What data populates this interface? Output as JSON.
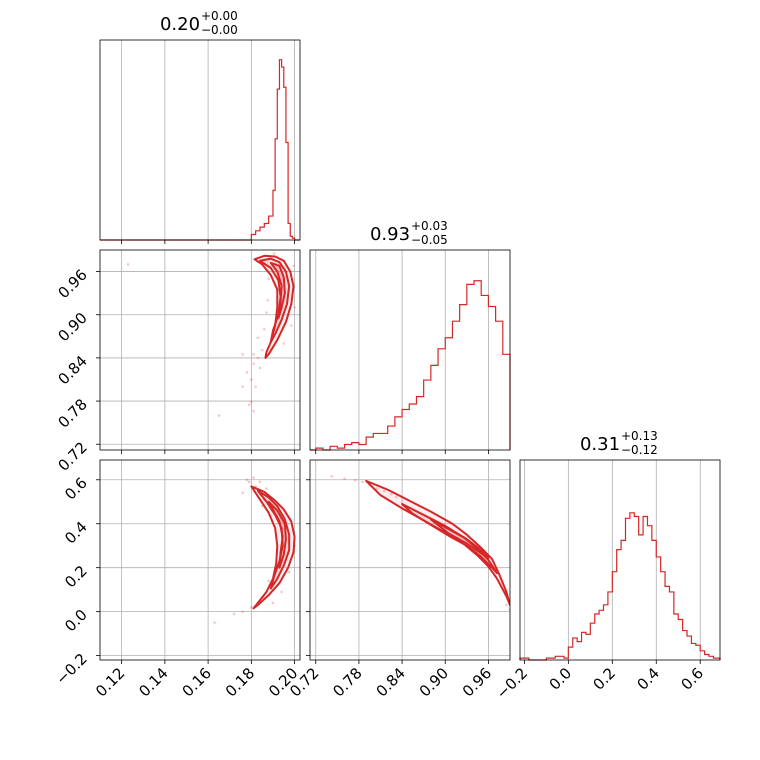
{
  "colors": {
    "line": "#d62728",
    "grid": "#b0b0b0",
    "frame": "#000000"
  },
  "chart_data": {
    "type": "corner",
    "parameters": [
      {
        "title": {
          "value": "0.20",
          "plus": "+0.00",
          "minus": "−0.00"
        },
        "range": [
          0.11,
          0.2025
        ],
        "ticks": [
          0.12,
          0.14,
          0.16,
          0.18,
          0.2
        ],
        "tick_labels": [
          "0.12",
          "0.14",
          "0.16",
          "0.18",
          "0.20"
        ],
        "histogram": {
          "edges": [
            0.11,
            0.18,
            0.182,
            0.184,
            0.186,
            0.188,
            0.19,
            0.191,
            0.192,
            0.193,
            0.194,
            0.195,
            0.196,
            0.197,
            0.198,
            0.199,
            0.2,
            0.2025
          ],
          "counts": [
            0.0,
            0.03,
            0.05,
            0.07,
            0.09,
            0.13,
            0.27,
            0.55,
            0.82,
            0.98,
            0.94,
            0.83,
            0.53,
            0.09,
            0.02,
            0.01,
            0.0
          ]
        }
      },
      {
        "title": {
          "value": "0.93",
          "plus": "+0.03",
          "minus": "−0.05"
        },
        "range": [
          0.712,
          0.99
        ],
        "ticks": [
          0.72,
          0.78,
          0.84,
          0.9,
          0.96
        ],
        "tick_labels": [
          "0.72",
          "0.78",
          "0.84",
          "0.90",
          "0.96"
        ],
        "histogram": {
          "edges": [
            0.712,
            0.72,
            0.73,
            0.74,
            0.75,
            0.76,
            0.77,
            0.78,
            0.79,
            0.8,
            0.81,
            0.82,
            0.83,
            0.84,
            0.85,
            0.86,
            0.87,
            0.88,
            0.89,
            0.9,
            0.91,
            0.92,
            0.93,
            0.94,
            0.95,
            0.96,
            0.97,
            0.98,
            0.99
          ],
          "counts": [
            0.0,
            0.01,
            0.0,
            0.02,
            0.01,
            0.03,
            0.04,
            0.03,
            0.07,
            0.09,
            0.09,
            0.13,
            0.18,
            0.22,
            0.25,
            0.29,
            0.38,
            0.46,
            0.55,
            0.61,
            0.7,
            0.79,
            0.9,
            0.92,
            0.84,
            0.78,
            0.7,
            0.52
          ]
        }
      },
      {
        "title": {
          "value": "0.31",
          "plus": "+0.13",
          "minus": "−0.12"
        },
        "range": [
          -0.22,
          0.69
        ],
        "ticks": [
          -0.2,
          0.0,
          0.2,
          0.4,
          0.6
        ],
        "tick_labels": [
          "−0.2",
          "0.0",
          "0.2",
          "0.4",
          "0.6"
        ],
        "histogram": {
          "edges": [
            -0.22,
            -0.18,
            -0.1,
            -0.06,
            -0.02,
            0.0,
            0.02,
            0.04,
            0.06,
            0.08,
            0.1,
            0.12,
            0.14,
            0.16,
            0.18,
            0.2,
            0.22,
            0.24,
            0.26,
            0.28,
            0.3,
            0.32,
            0.34,
            0.36,
            0.38,
            0.4,
            0.42,
            0.44,
            0.46,
            0.48,
            0.5,
            0.52,
            0.54,
            0.56,
            0.58,
            0.6,
            0.62,
            0.64,
            0.66,
            0.69
          ],
          "counts": [
            0.01,
            0.0,
            0.01,
            0.02,
            0.01,
            0.07,
            0.12,
            0.1,
            0.15,
            0.14,
            0.2,
            0.25,
            0.27,
            0.3,
            0.37,
            0.48,
            0.6,
            0.65,
            0.77,
            0.8,
            0.78,
            0.68,
            0.78,
            0.73,
            0.65,
            0.56,
            0.48,
            0.4,
            0.37,
            0.25,
            0.22,
            0.16,
            0.13,
            0.09,
            0.08,
            0.05,
            0.03,
            0.02,
            0.01
          ]
        }
      }
    ],
    "contours": [
      {
        "x_param": 0,
        "y_param": 1,
        "levels": [
          [
            [
              0.1815,
              0.977
            ],
            [
              0.186,
              0.982
            ],
            [
              0.191,
              0.981
            ],
            [
              0.195,
              0.975
            ],
            [
              0.198,
              0.96
            ],
            [
              0.1995,
              0.94
            ],
            [
              0.1985,
              0.915
            ],
            [
              0.196,
              0.89
            ],
            [
              0.192,
              0.865
            ],
            [
              0.188,
              0.845
            ],
            [
              0.1865,
              0.84
            ],
            [
              0.187,
              0.848
            ],
            [
              0.189,
              0.862
            ],
            [
              0.191,
              0.885
            ],
            [
              0.192,
              0.91
            ],
            [
              0.192,
              0.935
            ],
            [
              0.189,
              0.955
            ],
            [
              0.185,
              0.97
            ],
            [
              0.1815,
              0.977
            ]
          ],
          [
            [
              0.184,
              0.975
            ],
            [
              0.189,
              0.978
            ],
            [
              0.193,
              0.973
            ],
            [
              0.196,
              0.96
            ],
            [
              0.1975,
              0.94
            ],
            [
              0.1965,
              0.915
            ],
            [
              0.194,
              0.893
            ],
            [
              0.191,
              0.873
            ],
            [
              0.189,
              0.862
            ],
            [
              0.19,
              0.878
            ],
            [
              0.1925,
              0.9
            ],
            [
              0.1935,
              0.925
            ],
            [
              0.1925,
              0.948
            ],
            [
              0.189,
              0.965
            ],
            [
              0.184,
              0.975
            ]
          ],
          [
            [
              0.189,
              0.972
            ],
            [
              0.193,
              0.968
            ],
            [
              0.195,
              0.952
            ],
            [
              0.1955,
              0.93
            ],
            [
              0.194,
              0.91
            ],
            [
              0.1925,
              0.895
            ],
            [
              0.1935,
              0.918
            ],
            [
              0.194,
              0.94
            ],
            [
              0.192,
              0.96
            ],
            [
              0.189,
              0.972
            ]
          ]
        ],
        "scatter": [
          [
            0.123,
            0.97
          ],
          [
            0.165,
            0.76
          ],
          [
            0.176,
            0.8
          ],
          [
            0.178,
            0.82
          ],
          [
            0.179,
            0.775
          ],
          [
            0.18,
            0.81
          ],
          [
            0.181,
            0.832
          ],
          [
            0.182,
            0.8
          ],
          [
            0.183,
            0.84
          ],
          [
            0.184,
            0.826
          ],
          [
            0.185,
            0.851
          ],
          [
            0.176,
            0.845
          ],
          [
            0.181,
            0.845
          ],
          [
            0.183,
            0.868
          ],
          [
            0.186,
            0.88
          ],
          [
            0.187,
            0.903
          ],
          [
            0.1875,
            0.92
          ],
          [
            0.188,
            0.95
          ],
          [
            0.1905,
            0.985
          ],
          [
            0.1995,
            0.968
          ],
          [
            0.2,
            0.91
          ],
          [
            0.1985,
            0.885
          ],
          [
            0.195,
            0.86
          ],
          [
            0.18,
            0.779
          ],
          [
            0.181,
            0.766
          ]
        ]
      },
      {
        "x_param": 0,
        "y_param": 2,
        "levels": [
          [
            [
              0.18,
              0.57
            ],
            [
              0.186,
              0.545
            ],
            [
              0.191,
              0.505
            ],
            [
              0.195,
              0.465
            ],
            [
              0.1985,
              0.41
            ],
            [
              0.2,
              0.34
            ],
            [
              0.1995,
              0.27
            ],
            [
              0.197,
              0.2
            ],
            [
              0.193,
              0.13
            ],
            [
              0.188,
              0.075
            ],
            [
              0.183,
              0.03
            ],
            [
              0.181,
              0.015
            ],
            [
              0.183,
              0.04
            ],
            [
              0.187,
              0.09
            ],
            [
              0.19,
              0.15
            ],
            [
              0.1915,
              0.22
            ],
            [
              0.192,
              0.3
            ],
            [
              0.191,
              0.38
            ],
            [
              0.188,
              0.45
            ],
            [
              0.184,
              0.51
            ],
            [
              0.18,
              0.57
            ]
          ],
          [
            [
              0.183,
              0.55
            ],
            [
              0.188,
              0.52
            ],
            [
              0.192,
              0.48
            ],
            [
              0.1955,
              0.42
            ],
            [
              0.1975,
              0.35
            ],
            [
              0.1975,
              0.28
            ],
            [
              0.195,
              0.21
            ],
            [
              0.192,
              0.15
            ],
            [
              0.189,
              0.105
            ],
            [
              0.1905,
              0.16
            ],
            [
              0.193,
              0.23
            ],
            [
              0.1945,
              0.3
            ],
            [
              0.194,
              0.38
            ],
            [
              0.191,
              0.44
            ],
            [
              0.187,
              0.5
            ],
            [
              0.183,
              0.55
            ]
          ],
          [
            [
              0.188,
              0.5
            ],
            [
              0.192,
              0.46
            ],
            [
              0.1955,
              0.4
            ],
            [
              0.196,
              0.33
            ],
            [
              0.195,
              0.26
            ],
            [
              0.193,
              0.2
            ],
            [
              0.1935,
              0.27
            ],
            [
              0.1945,
              0.34
            ],
            [
              0.193,
              0.41
            ],
            [
              0.188,
              0.5
            ]
          ]
        ],
        "scatter": [
          [
            0.178,
            0.6
          ],
          [
            0.179,
            0.59
          ],
          [
            0.181,
            0.61
          ],
          [
            0.182,
            0.57
          ],
          [
            0.176,
            0.54
          ],
          [
            0.184,
            0.59
          ],
          [
            0.187,
            0.56
          ],
          [
            0.186,
            0.51
          ],
          [
            0.185,
            0.48
          ],
          [
            0.188,
            0.14
          ],
          [
            0.186,
            0.06
          ],
          [
            0.18,
            0.02
          ],
          [
            0.176,
            0.0
          ],
          [
            0.172,
            -0.01
          ],
          [
            0.163,
            -0.05
          ],
          [
            0.198,
            0.42
          ],
          [
            0.2,
            0.3
          ],
          [
            0.1975,
            0.18
          ],
          [
            0.194,
            0.09
          ],
          [
            0.19,
            0.04
          ]
        ]
      },
      {
        "x_param": 1,
        "y_param": 2,
        "levels": [
          [
            [
              0.79,
              0.595
            ],
            [
              0.82,
              0.555
            ],
            [
              0.85,
              0.505
            ],
            [
              0.88,
              0.455
            ],
            [
              0.91,
              0.4
            ],
            [
              0.93,
              0.35
            ],
            [
              0.95,
              0.29
            ],
            [
              0.965,
              0.24
            ],
            [
              0.975,
              0.17
            ],
            [
              0.985,
              0.09
            ],
            [
              0.99,
              0.03
            ],
            [
              0.985,
              0.07
            ],
            [
              0.972,
              0.15
            ],
            [
              0.96,
              0.205
            ],
            [
              0.945,
              0.255
            ],
            [
              0.925,
              0.31
            ],
            [
              0.9,
              0.36
            ],
            [
              0.87,
              0.415
            ],
            [
              0.84,
              0.47
            ],
            [
              0.81,
              0.53
            ],
            [
              0.79,
              0.595
            ]
          ],
          [
            [
              0.84,
              0.49
            ],
            [
              0.87,
              0.44
            ],
            [
              0.9,
              0.39
            ],
            [
              0.925,
              0.34
            ],
            [
              0.945,
              0.285
            ],
            [
              0.96,
              0.235
            ],
            [
              0.972,
              0.175
            ],
            [
              0.965,
              0.2
            ],
            [
              0.95,
              0.25
            ],
            [
              0.93,
              0.3
            ],
            [
              0.905,
              0.345
            ],
            [
              0.88,
              0.395
            ],
            [
              0.855,
              0.445
            ],
            [
              0.84,
              0.49
            ]
          ],
          [
            [
              0.88,
              0.42
            ],
            [
              0.905,
              0.375
            ],
            [
              0.93,
              0.33
            ],
            [
              0.95,
              0.28
            ],
            [
              0.96,
              0.245
            ],
            [
              0.95,
              0.265
            ],
            [
              0.93,
              0.31
            ],
            [
              0.905,
              0.355
            ],
            [
              0.88,
              0.42
            ]
          ]
        ],
        "scatter": [
          [
            0.742,
            0.615
          ],
          [
            0.76,
            0.605
          ],
          [
            0.775,
            0.598
          ],
          [
            0.785,
            0.59
          ],
          [
            0.795,
            0.575
          ],
          [
            0.805,
            0.56
          ],
          [
            0.815,
            0.548
          ],
          [
            0.825,
            0.535
          ],
          [
            0.832,
            0.522
          ],
          [
            0.988,
            0.05
          ],
          [
            0.99,
            0.01
          ],
          [
            0.985,
            0.03
          ]
        ]
      }
    ]
  }
}
